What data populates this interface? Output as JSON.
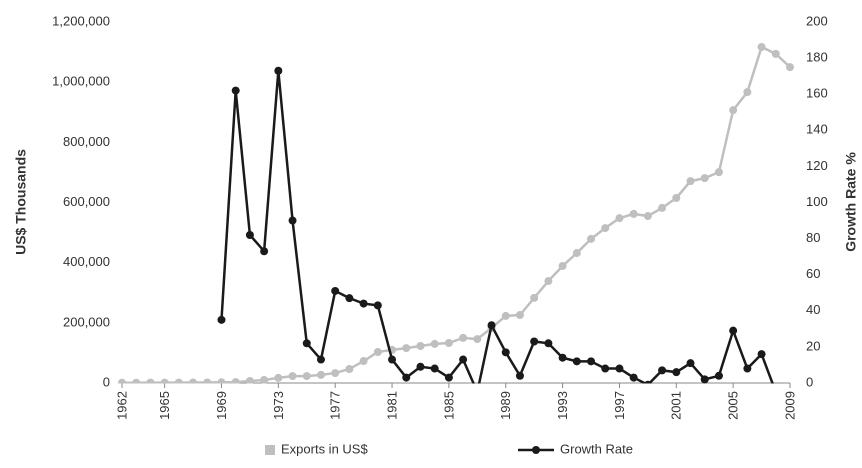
{
  "chart_data": {
    "type": "line",
    "x": [
      1962,
      1963,
      1964,
      1965,
      1966,
      1967,
      1968,
      1969,
      1970,
      1971,
      1972,
      1973,
      1974,
      1975,
      1976,
      1977,
      1978,
      1979,
      1980,
      1981,
      1982,
      1983,
      1984,
      1985,
      1986,
      1987,
      1988,
      1989,
      1990,
      1991,
      1992,
      1993,
      1994,
      1995,
      1996,
      1997,
      1998,
      1999,
      2000,
      2001,
      2002,
      2003,
      2004,
      2005,
      2006,
      2007,
      2008,
      2009
    ],
    "xlim": [
      1962,
      2009
    ],
    "xticks": [
      1962,
      1965,
      1969,
      1973,
      1977,
      1981,
      1985,
      1989,
      1993,
      1997,
      2001,
      2005,
      2009
    ],
    "ylabel": "US$ Thousands",
    "y2label": "Growth Rate %",
    "ylim": [
      0,
      1200000
    ],
    "yticks": [
      0,
      {
        "value": 200000,
        "label": "200,000"
      },
      {
        "value": 400000,
        "label": "400,000"
      },
      {
        "value": 600000,
        "label": "600,000"
      },
      {
        "value": 800000,
        "label": "800,000"
      },
      {
        "value": 1000000,
        "label": "1,000,000"
      },
      {
        "value": 1200000,
        "label": "1,200,000"
      }
    ],
    "y2lim": [
      0,
      200
    ],
    "y2ticks": [
      0,
      20,
      40,
      60,
      80,
      100,
      120,
      140,
      160,
      180,
      200
    ],
    "legend": "bottom",
    "series": [
      {
        "name": "Exports in US$",
        "color": "#bfbfbf",
        "values": [
          1000,
          1000,
          1200,
          1300,
          1400,
          1500,
          1700,
          2300,
          3000,
          6600,
          10000,
          17000,
          23000,
          23000,
          27000,
          33000,
          46500,
          73000,
          103000,
          110000,
          116000,
          123000,
          130000,
          133000,
          150000,
          146000,
          183000,
          223000,
          226000,
          283000,
          339000,
          389000,
          432000,
          479000,
          515000,
          548000,
          562000,
          555000,
          582000,
          615000,
          671000,
          681000,
          701000,
          907000,
          967000,
          1117000,
          1094000,
          1050000
        ]
      },
      {
        "name": "Growth Rate",
        "color": "#1a1a1a",
        "axis": "y2",
        "values": [
          null,
          null,
          null,
          null,
          null,
          null,
          null,
          35,
          162,
          82,
          73,
          173,
          90,
          22,
          13,
          51,
          47,
          44,
          43,
          13,
          3,
          9,
          8,
          3,
          13,
          -5,
          32,
          17,
          4,
          23,
          22,
          14,
          12,
          12,
          8,
          8,
          3,
          -1,
          7,
          6,
          11,
          2,
          4,
          29,
          8,
          16,
          -5,
          -4
        ]
      }
    ]
  }
}
